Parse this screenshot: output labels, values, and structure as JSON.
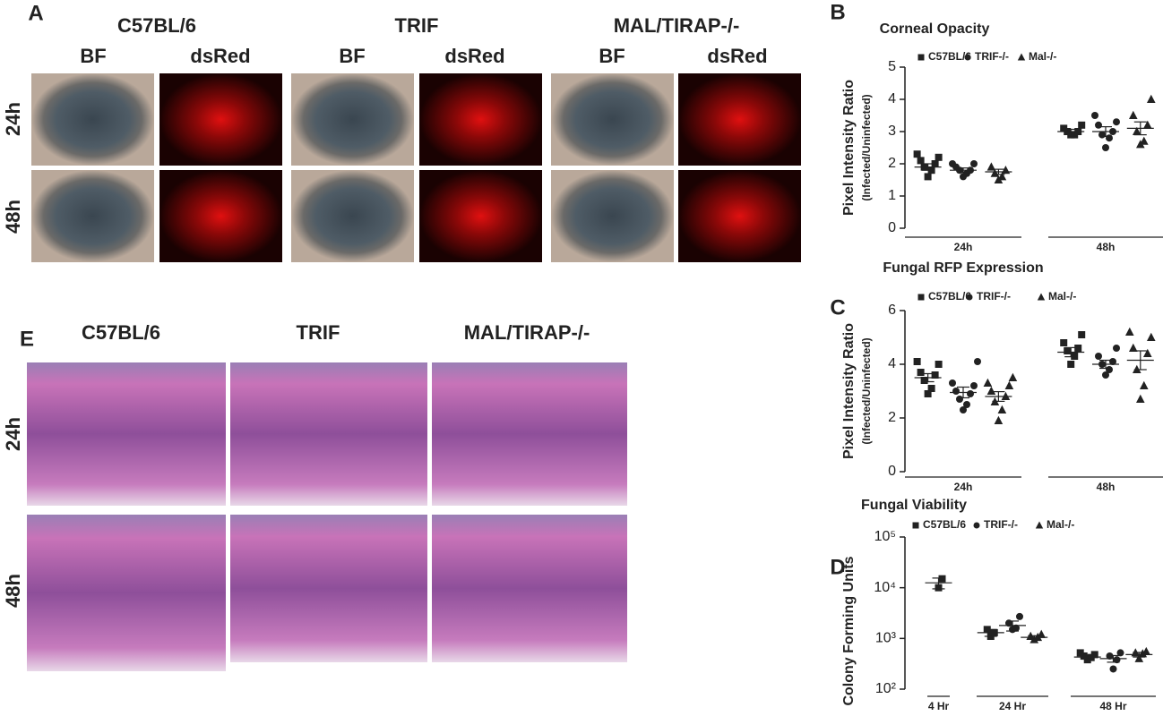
{
  "panel_a": {
    "label": "A",
    "groups": [
      "C57BL/6",
      "TRIF",
      "MAL/TIRAP-/-"
    ],
    "columns": [
      "BF",
      "dsRed"
    ],
    "rows": [
      "24h",
      "48h"
    ]
  },
  "panel_e": {
    "label": "E",
    "groups": [
      "C57BL/6",
      "TRIF",
      "MAL/TIRAP-/-"
    ],
    "rows": [
      "24h",
      "48h"
    ]
  },
  "chart_data": [
    {
      "type": "dot",
      "label": "B",
      "title": "Corneal Opacity",
      "y_label": "Pixel  Intensity Ratio",
      "y_sublabel": "(Infected/Uninfected)",
      "categories": [
        "24h",
        "48h"
      ],
      "ylim": [
        0,
        5
      ],
      "yticks": [
        0,
        1,
        2,
        3,
        4,
        5
      ],
      "series": [
        {
          "name": "C57BL/6",
          "marker": "square",
          "color": "#222222",
          "values": [
            1.9,
            3.0
          ],
          "errors": [
            0.1,
            0.07
          ],
          "points": [
            [
              1.6,
              1.8,
              1.9,
              2.0,
              2.1,
              2.2,
              2.3
            ],
            [
              2.9,
              2.9,
              3.0,
              3.0,
              3.1,
              3.2
            ]
          ]
        },
        {
          "name": "TRIF-/-",
          "marker": "circle",
          "color": "#222222",
          "values": [
            1.8,
            3.0
          ],
          "errors": [
            0.07,
            0.15
          ],
          "points": [
            [
              1.6,
              1.7,
              1.8,
              1.8,
              1.9,
              2.0,
              2.0
            ],
            [
              2.5,
              2.8,
              2.9,
              3.0,
              3.2,
              3.3,
              3.5
            ]
          ]
        },
        {
          "name": "Mal-/-",
          "marker": "triangle",
          "color": "#222222",
          "values": [
            1.75,
            3.1
          ],
          "errors": [
            0.08,
            0.2
          ],
          "points": [
            [
              1.5,
              1.6,
              1.7,
              1.8,
              1.9
            ],
            [
              2.6,
              2.7,
              3.0,
              3.2,
              3.5,
              4.0
            ]
          ]
        }
      ]
    },
    {
      "type": "dot",
      "label": "C",
      "title": "Fungal RFP Expression",
      "y_label": "Pixel  Intensity Ratio",
      "y_sublabel": "(Infected/Uninfected)",
      "categories": [
        "24h",
        "48h"
      ],
      "ylim": [
        0,
        6
      ],
      "yticks": [
        0,
        2,
        4,
        6
      ],
      "series": [
        {
          "name": "C57BL/6",
          "marker": "square",
          "color": "#222222",
          "values": [
            3.5,
            4.45
          ],
          "errors": [
            0.15,
            0.17
          ],
          "points": [
            [
              2.9,
              3.1,
              3.4,
              3.6,
              3.7,
              4.0,
              4.1
            ],
            [
              4.0,
              4.3,
              4.5,
              4.6,
              4.8,
              5.1
            ]
          ]
        },
        {
          "name": "TRIF-/-",
          "marker": "circle",
          "color": "#222222",
          "values": [
            2.95,
            4.0
          ],
          "errors": [
            0.2,
            0.15
          ],
          "points": [
            [
              2.3,
              2.5,
              2.7,
              2.9,
              3.0,
              3.2,
              3.3,
              4.1
            ],
            [
              3.6,
              3.8,
              4.0,
              4.1,
              4.3,
              4.6
            ]
          ]
        },
        {
          "name": "Mal-/-",
          "marker": "triangle",
          "color": "#222222",
          "values": [
            2.8,
            4.15
          ],
          "errors": [
            0.18,
            0.35
          ],
          "points": [
            [
              1.9,
              2.3,
              2.6,
              2.8,
              3.0,
              3.2,
              3.3,
              3.5
            ],
            [
              2.7,
              3.2,
              3.8,
              4.4,
              4.6,
              5.0,
              5.2
            ]
          ]
        }
      ]
    },
    {
      "type": "dot",
      "label": "D",
      "title": "Fungal Viability",
      "y_label": "Colony Forming Units",
      "categories": [
        "4 Hr",
        "24 Hr",
        "48 Hr"
      ],
      "log_scale": true,
      "ylim": [
        100,
        100000
      ],
      "yticks": [
        {
          "value": 100,
          "label": "10²"
        },
        {
          "value": 1000,
          "label": "10³"
        },
        {
          "value": 10000,
          "label": "10⁴"
        },
        {
          "value": 100000,
          "label": "10⁵"
        }
      ],
      "series": [
        {
          "name": "C57BL/6",
          "marker": "square",
          "color": "#222222",
          "values": [
            12500,
            1300,
            430
          ],
          "errors": [
            3000,
            200,
            40
          ],
          "points": [
            [
              10000,
              15000
            ],
            [
              1100,
              1300,
              1500
            ],
            [
              380,
              420,
              450,
              480,
              520
            ]
          ]
        },
        {
          "name": "TRIF-/-",
          "marker": "circle",
          "color": "#222222",
          "values": [
            null,
            1800,
            400
          ],
          "errors": [
            null,
            400,
            60
          ],
          "points": [
            null,
            [
              1500,
              1600,
              2000,
              2700
            ],
            [
              250,
              380,
              450,
              520
            ]
          ]
        },
        {
          "name": "Mal-/-",
          "marker": "triangle",
          "color": "#222222",
          "values": [
            null,
            1050,
            480
          ],
          "errors": [
            null,
            80,
            50
          ],
          "points": [
            null,
            [
              950,
              1050,
              1100,
              1200
            ],
            [
              400,
              500,
              520,
              550
            ]
          ]
        }
      ]
    }
  ]
}
